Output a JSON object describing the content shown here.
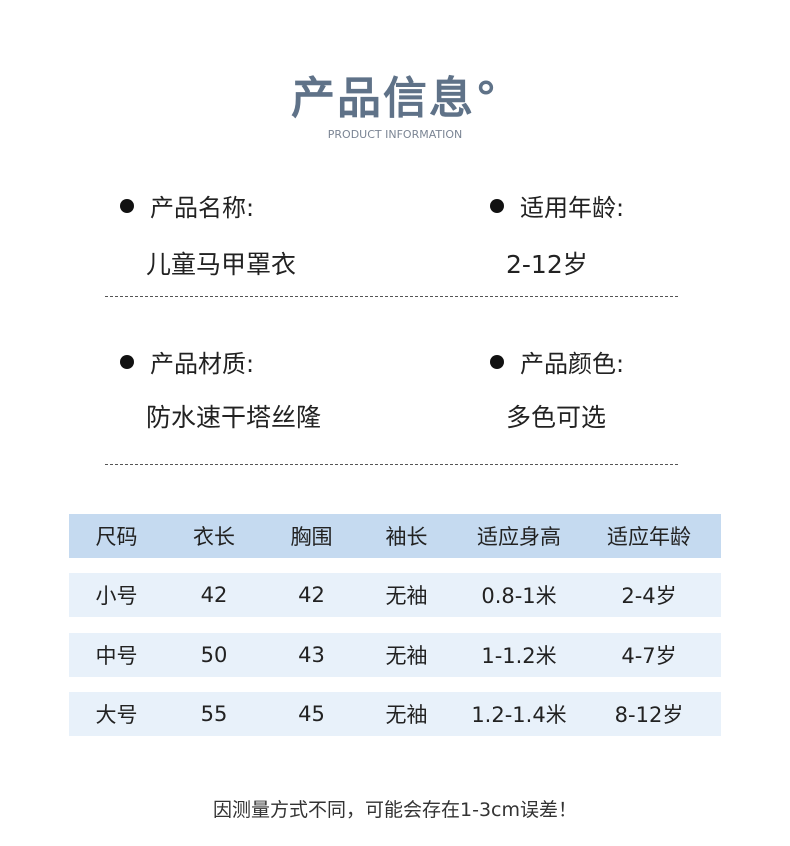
{
  "header": {
    "title": "产品信息°",
    "subtitle": "PRODUCT INFORMATION"
  },
  "info": [
    {
      "label": "产品名称:",
      "value": "儿童马甲罩衣"
    },
    {
      "label": "适用年龄:",
      "value": "2-12岁"
    },
    {
      "label": "产品材质:",
      "value": "防水速干塔丝隆"
    },
    {
      "label": "产品颜色:",
      "value": "多色可选"
    }
  ],
  "table": {
    "headers": [
      "尺码",
      "衣长",
      "胸围",
      "袖长",
      "适应身高",
      "适应年龄"
    ],
    "rows": [
      [
        "小号",
        "42",
        "42",
        "无袖",
        "0.8-1米",
        "2-4岁"
      ],
      [
        "中号",
        "50",
        "43",
        "无袖",
        "1-1.2米",
        "4-7岁"
      ],
      [
        "大号",
        "55",
        "45",
        "无袖",
        "1.2-1.4米",
        "8-12岁"
      ]
    ],
    "header_color": "#c5daf0",
    "row_color": "#e8f1fa"
  },
  "note": "因测量方式不同，可能会存在1-3cm误差！"
}
